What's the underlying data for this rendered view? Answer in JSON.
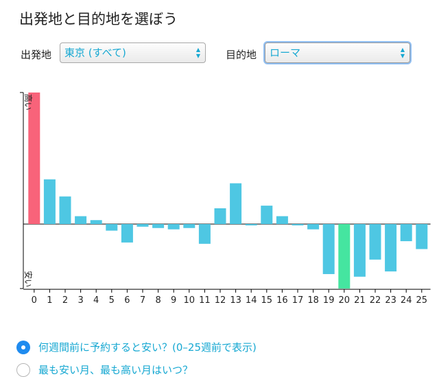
{
  "page": {
    "title": "出発地と目的地を選ぼう"
  },
  "selectors": {
    "origin_label": "出発地",
    "origin_value": "東京 (すべて)",
    "destination_label": "目的地",
    "destination_value": "ローマ"
  },
  "chart_data": {
    "type": "bar",
    "categories": [
      "0",
      "1",
      "2",
      "3",
      "4",
      "5",
      "6",
      "7",
      "8",
      "9",
      "10",
      "11",
      "12",
      "13",
      "14",
      "15",
      "16",
      "17",
      "18",
      "19",
      "20",
      "21",
      "22",
      "23",
      "24",
      "25"
    ],
    "values": [
      100,
      34,
      21,
      6,
      3,
      -5,
      -14,
      -2,
      -3,
      -4,
      -3,
      -15,
      12,
      31,
      -1,
      14,
      6,
      -1,
      -4,
      -38,
      -49,
      -40,
      -27,
      -36,
      -13,
      -19
    ],
    "ylabel_top": "高い",
    "ylabel_bottom": "安い",
    "ylim": [
      -49,
      100
    ],
    "highlight": {
      "max_index": 0,
      "min_index": 20
    },
    "colors": {
      "default": "#4ec7e3",
      "max": "#f8637a",
      "min": "#45e5a0"
    },
    "grid": false
  },
  "options": {
    "weeks_label": "何週間前に予約すると安い？(0–25週前で表示)",
    "months_label": "最も安い月、最も高い月はいつ？",
    "selected": "weeks"
  },
  "colors": {
    "accent": "#17a8d2",
    "radio_selected": "#1f8bef"
  }
}
